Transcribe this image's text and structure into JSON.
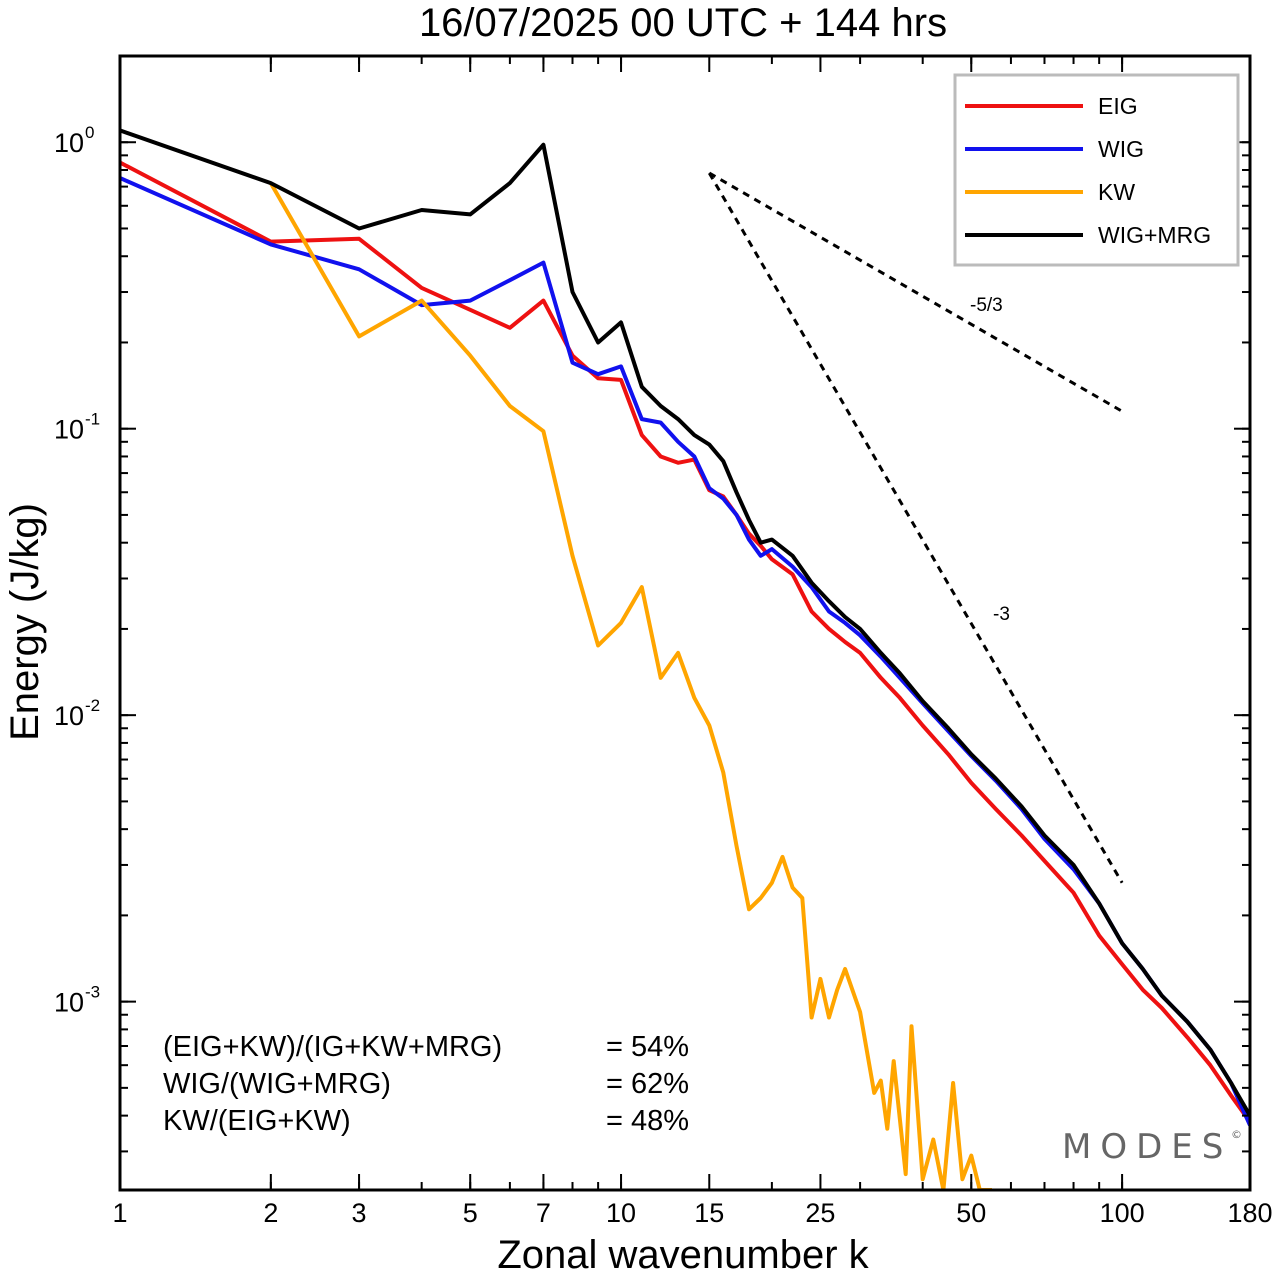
{
  "chart_data": {
    "type": "line",
    "title": "16/07/2025  00 UTC  + 144 hrs",
    "xlabel": "Zonal wavenumber k",
    "ylabel": "Energy (J/kg)",
    "xscale": "log",
    "yscale": "log",
    "xlim": [
      1,
      180
    ],
    "ylim": [
      0.00022,
      2.0
    ],
    "xticks": [
      1,
      2,
      3,
      5,
      7,
      10,
      15,
      25,
      50,
      100,
      180
    ],
    "xtick_labels": [
      "1",
      "2",
      "3",
      "5",
      "7",
      "10",
      "15",
      "25",
      "50",
      "100",
      "180"
    ],
    "yticks": [
      {
        "value": 1.0,
        "base": "10",
        "exp": "0"
      },
      {
        "value": 0.1,
        "base": "10",
        "exp": "-1"
      },
      {
        "value": 0.01,
        "base": "10",
        "exp": "-2"
      },
      {
        "value": 0.001,
        "base": "10",
        "exp": "-3"
      }
    ],
    "grid": false,
    "legend_position": "top-right",
    "series": [
      {
        "name": "EIG",
        "color": "#ee1111",
        "points": [
          [
            1,
            0.85
          ],
          [
            2,
            0.45
          ],
          [
            3,
            0.46
          ],
          [
            4,
            0.31
          ],
          [
            5,
            0.26
          ],
          [
            6,
            0.225
          ],
          [
            7,
            0.28
          ],
          [
            8,
            0.18
          ],
          [
            9,
            0.15
          ],
          [
            10,
            0.148
          ],
          [
            11,
            0.095
          ],
          [
            12,
            0.08
          ],
          [
            13,
            0.076
          ],
          [
            14,
            0.078
          ],
          [
            15,
            0.061
          ],
          [
            16,
            0.058
          ],
          [
            17,
            0.05
          ],
          [
            18,
            0.043
          ],
          [
            19,
            0.039
          ],
          [
            20,
            0.035
          ],
          [
            22,
            0.031
          ],
          [
            24,
            0.023
          ],
          [
            26,
            0.02
          ],
          [
            28,
            0.018
          ],
          [
            30,
            0.0165
          ],
          [
            33,
            0.0135
          ],
          [
            36,
            0.0115
          ],
          [
            40,
            0.0092
          ],
          [
            45,
            0.0073
          ],
          [
            50,
            0.0058
          ],
          [
            56,
            0.0047
          ],
          [
            63,
            0.0038
          ],
          [
            70,
            0.0031
          ],
          [
            80,
            0.0024
          ],
          [
            90,
            0.0017
          ],
          [
            100,
            0.00135
          ],
          [
            110,
            0.0011
          ],
          [
            120,
            0.00095
          ],
          [
            135,
            0.00075
          ],
          [
            150,
            0.0006
          ],
          [
            165,
            0.00047
          ],
          [
            180,
            0.00038
          ]
        ]
      },
      {
        "name": "WIG",
        "color": "#1111ee",
        "points": [
          [
            1,
            0.75
          ],
          [
            2,
            0.44
          ],
          [
            3,
            0.36
          ],
          [
            4,
            0.27
          ],
          [
            5,
            0.28
          ],
          [
            6,
            0.33
          ],
          [
            7,
            0.38
          ],
          [
            8,
            0.17
          ],
          [
            9,
            0.155
          ],
          [
            10,
            0.165
          ],
          [
            11,
            0.108
          ],
          [
            12,
            0.105
          ],
          [
            13,
            0.09
          ],
          [
            14,
            0.08
          ],
          [
            15,
            0.062
          ],
          [
            16,
            0.057
          ],
          [
            17,
            0.05
          ],
          [
            18,
            0.041
          ],
          [
            19,
            0.036
          ],
          [
            20,
            0.038
          ],
          [
            22,
            0.033
          ],
          [
            24,
            0.028
          ],
          [
            26,
            0.023
          ],
          [
            28,
            0.021
          ],
          [
            30,
            0.019
          ],
          [
            33,
            0.016
          ],
          [
            36,
            0.0135
          ],
          [
            40,
            0.011
          ],
          [
            45,
            0.0088
          ],
          [
            50,
            0.0072
          ],
          [
            56,
            0.0059
          ],
          [
            63,
            0.0047
          ],
          [
            70,
            0.0037
          ],
          [
            80,
            0.0029
          ],
          [
            90,
            0.0022
          ],
          [
            100,
            0.0016
          ],
          [
            110,
            0.0013
          ],
          [
            120,
            0.00105
          ],
          [
            135,
            0.00085
          ],
          [
            150,
            0.00068
          ],
          [
            165,
            0.00052
          ],
          [
            180,
            0.00037
          ]
        ]
      },
      {
        "name": "KW",
        "color": "#ffa500",
        "points": [
          [
            2,
            0.72
          ],
          [
            3,
            0.21
          ],
          [
            4,
            0.28
          ],
          [
            5,
            0.18
          ],
          [
            6,
            0.12
          ],
          [
            7,
            0.098
          ],
          [
            8,
            0.036
          ],
          [
            9,
            0.0175
          ],
          [
            10,
            0.021
          ],
          [
            11,
            0.028
          ],
          [
            12,
            0.0135
          ],
          [
            13,
            0.0165
          ],
          [
            14,
            0.0115
          ],
          [
            15,
            0.0092
          ],
          [
            16,
            0.0063
          ],
          [
            17,
            0.0035
          ],
          [
            18,
            0.0021
          ],
          [
            19,
            0.0023
          ],
          [
            20,
            0.0026
          ],
          [
            21,
            0.0032
          ],
          [
            22,
            0.0025
          ],
          [
            23,
            0.0023
          ],
          [
            24,
            0.00088
          ],
          [
            25,
            0.0012
          ],
          [
            26,
            0.00088
          ],
          [
            27,
            0.0011
          ],
          [
            28,
            0.0013
          ],
          [
            30,
            0.00092
          ],
          [
            32,
            0.00048
          ],
          [
            33,
            0.00053
          ],
          [
            34,
            0.00036
          ],
          [
            35,
            0.00062
          ],
          [
            37,
            0.00025
          ],
          [
            38,
            0.00082
          ],
          [
            40,
            0.00024
          ],
          [
            42,
            0.00033
          ],
          [
            44,
            0.00022
          ],
          [
            46,
            0.00052
          ],
          [
            48,
            0.00024
          ],
          [
            50,
            0.00029
          ],
          [
            52,
            0.00022
          ],
          [
            55,
            0.00022
          ]
        ]
      },
      {
        "name": "WIG+MRG",
        "color": "#000000",
        "points": [
          [
            1,
            1.1
          ],
          [
            2,
            0.72
          ],
          [
            3,
            0.5
          ],
          [
            4,
            0.58
          ],
          [
            5,
            0.56
          ],
          [
            6,
            0.72
          ],
          [
            7,
            0.98
          ],
          [
            8,
            0.3
          ],
          [
            9,
            0.2
          ],
          [
            10,
            0.235
          ],
          [
            11,
            0.14
          ],
          [
            12,
            0.12
          ],
          [
            13,
            0.108
          ],
          [
            14,
            0.095
          ],
          [
            15,
            0.088
          ],
          [
            16,
            0.077
          ],
          [
            17,
            0.06
          ],
          [
            18,
            0.048
          ],
          [
            19,
            0.04
          ],
          [
            20,
            0.041
          ],
          [
            22,
            0.036
          ],
          [
            24,
            0.029
          ],
          [
            26,
            0.025
          ],
          [
            28,
            0.022
          ],
          [
            30,
            0.02
          ],
          [
            33,
            0.0165
          ],
          [
            36,
            0.014
          ],
          [
            40,
            0.0112
          ],
          [
            45,
            0.009
          ],
          [
            50,
            0.0073
          ],
          [
            56,
            0.006
          ],
          [
            63,
            0.0048
          ],
          [
            70,
            0.0038
          ],
          [
            80,
            0.003
          ],
          [
            90,
            0.0022
          ],
          [
            100,
            0.0016
          ],
          [
            110,
            0.0013
          ],
          [
            120,
            0.00105
          ],
          [
            135,
            0.00085
          ],
          [
            150,
            0.00068
          ],
          [
            165,
            0.00052
          ],
          [
            180,
            0.0004
          ]
        ]
      }
    ],
    "reference_lines": [
      {
        "label": "-5/3",
        "from": [
          15,
          0.78
        ],
        "to": [
          100,
          0.115
        ]
      },
      {
        "label": "-3",
        "from": [
          15,
          0.78
        ],
        "to": [
          100,
          0.0026
        ]
      }
    ],
    "annotations": [
      {
        "label": "(EIG+KW)/(IG+KW+MRG)",
        "value": "= 54%"
      },
      {
        "label": "WIG/(WIG+MRG)",
        "value": "= 62%"
      },
      {
        "label": "KW/(EIG+KW)",
        "value": "= 48%"
      }
    ]
  },
  "watermark": {
    "text": "MODES",
    "symbol": "©"
  }
}
